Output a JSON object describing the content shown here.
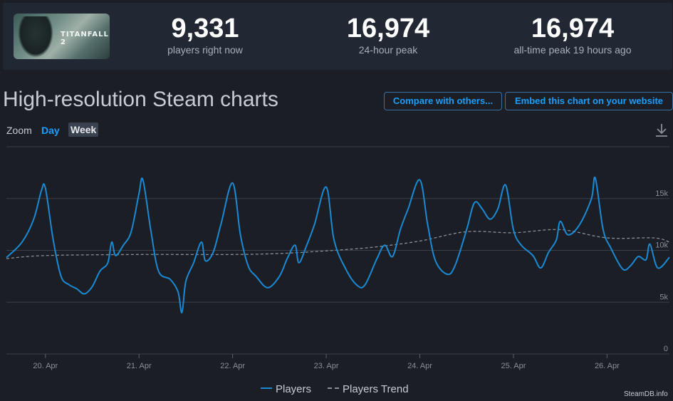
{
  "game": {
    "logo_text": "TITANFALL 2"
  },
  "stats": [
    {
      "value": "9,331",
      "label": "players right now"
    },
    {
      "value": "16,974",
      "label": "24-hour peak"
    },
    {
      "value": "16,974",
      "label": "all-time peak 19 hours ago"
    }
  ],
  "section": {
    "title": "High-resolution Steam charts",
    "compare_label": "Compare with others...",
    "embed_label": "Embed this chart on your website"
  },
  "zoom": {
    "label": "Zoom",
    "options": [
      "Day",
      "Week"
    ],
    "active": "Week"
  },
  "credit": "SteamDB.info",
  "colors": {
    "players": "#1a8ad4",
    "trend": "#8a8f96",
    "accent": "#1a9fff",
    "grid": "#3a3f48"
  },
  "chart_data": {
    "type": "line",
    "title": "",
    "xlabel": "",
    "ylabel": "",
    "x_range": [
      "2024-04-19 14:00",
      "2024-04-26 16:00"
    ],
    "ylim": [
      0,
      20000
    ],
    "y_ticks": [
      0,
      5000,
      10000,
      15000
    ],
    "y_tick_labels": [
      "0",
      "5k",
      "10k",
      "15k"
    ],
    "x_ticks": [
      "2024-04-20",
      "2024-04-21",
      "2024-04-22",
      "2024-04-23",
      "2024-04-24",
      "2024-04-25",
      "2024-04-26"
    ],
    "x_tick_labels": [
      "20. Apr",
      "21. Apr",
      "22. Apr",
      "23. Apr",
      "24. Apr",
      "25. Apr",
      "26. Apr"
    ],
    "grid": true,
    "legend_position": "bottom-center",
    "series": [
      {
        "name": "Players",
        "points": [
          [
            "2024-04-19 14:00",
            9300
          ],
          [
            "2024-04-19 18:00",
            10800
          ],
          [
            "2024-04-19 21:00",
            13000
          ],
          [
            "2024-04-19 23:00",
            15800
          ],
          [
            "2024-04-20 00:00",
            16000
          ],
          [
            "2024-04-20 02:00",
            11000
          ],
          [
            "2024-04-20 04:00",
            7500
          ],
          [
            "2024-04-20 06:00",
            6700
          ],
          [
            "2024-04-20 08:00",
            6300
          ],
          [
            "2024-04-20 10:00",
            5800
          ],
          [
            "2024-04-20 12:00",
            6500
          ],
          [
            "2024-04-20 14:00",
            8000
          ],
          [
            "2024-04-20 16:00",
            8800
          ],
          [
            "2024-04-20 17:00",
            10800
          ],
          [
            "2024-04-20 18:00",
            9500
          ],
          [
            "2024-04-20 20:00",
            10500
          ],
          [
            "2024-04-20 22:00",
            11800
          ],
          [
            "2024-04-21 00:00",
            15500
          ],
          [
            "2024-04-21 01:00",
            16800
          ],
          [
            "2024-04-21 03:00",
            12000
          ],
          [
            "2024-04-21 05:00",
            8000
          ],
          [
            "2024-04-21 08:00",
            7200
          ],
          [
            "2024-04-21 10:00",
            6000
          ],
          [
            "2024-04-21 11:00",
            4000
          ],
          [
            "2024-04-21 12:00",
            7000
          ],
          [
            "2024-04-21 14:00",
            8800
          ],
          [
            "2024-04-21 16:00",
            10800
          ],
          [
            "2024-04-21 17:00",
            9000
          ],
          [
            "2024-04-21 19:00",
            9800
          ],
          [
            "2024-04-21 21:00",
            12500
          ],
          [
            "2024-04-22 00:00",
            16500
          ],
          [
            "2024-04-22 02:00",
            11500
          ],
          [
            "2024-04-22 04:00",
            8500
          ],
          [
            "2024-04-22 06:00",
            7500
          ],
          [
            "2024-04-22 09:00",
            6400
          ],
          [
            "2024-04-22 12:00",
            7500
          ],
          [
            "2024-04-22 14:00",
            9200
          ],
          [
            "2024-04-22 16:00",
            10500
          ],
          [
            "2024-04-22 17:00",
            8800
          ],
          [
            "2024-04-22 19:00",
            10500
          ],
          [
            "2024-04-22 21:00",
            12500
          ],
          [
            "2024-04-23 00:00",
            16100
          ],
          [
            "2024-04-23 02:00",
            11000
          ],
          [
            "2024-04-23 05:00",
            8200
          ],
          [
            "2024-04-23 08:00",
            6600
          ],
          [
            "2024-04-23 10:00",
            6700
          ],
          [
            "2024-04-23 13:00",
            9200
          ],
          [
            "2024-04-23 15:00",
            10500
          ],
          [
            "2024-04-23 17:00",
            9400
          ],
          [
            "2024-04-23 19:00",
            12000
          ],
          [
            "2024-04-23 21:00",
            14000
          ],
          [
            "2024-04-24 00:00",
            16800
          ],
          [
            "2024-04-24 02:00",
            12500
          ],
          [
            "2024-04-24 04:00",
            9000
          ],
          [
            "2024-04-24 07:00",
            7700
          ],
          [
            "2024-04-24 09:00",
            8500
          ],
          [
            "2024-04-24 12:00",
            12000
          ],
          [
            "2024-04-24 14:00",
            14600
          ],
          [
            "2024-04-24 16:00",
            14000
          ],
          [
            "2024-04-24 18:00",
            13000
          ],
          [
            "2024-04-24 20:00",
            14000
          ],
          [
            "2024-04-24 22:00",
            16300
          ],
          [
            "2024-04-25 00:00",
            12000
          ],
          [
            "2024-04-25 02:00",
            10500
          ],
          [
            "2024-04-25 05:00",
            9500
          ],
          [
            "2024-04-25 07:00",
            8300
          ],
          [
            "2024-04-25 09:00",
            9800
          ],
          [
            "2024-04-25 11:00",
            11000
          ],
          [
            "2024-04-25 12:00",
            12800
          ],
          [
            "2024-04-25 14:00",
            11500
          ],
          [
            "2024-04-25 17:00",
            12500
          ],
          [
            "2024-04-25 20:00",
            15000
          ],
          [
            "2024-04-25 21:00",
            16974
          ],
          [
            "2024-04-25 23:00",
            12000
          ],
          [
            "2024-04-26 01:00",
            10200
          ],
          [
            "2024-04-26 04:00",
            8200
          ],
          [
            "2024-04-26 06:00",
            8500
          ],
          [
            "2024-04-26 08:00",
            9400
          ],
          [
            "2024-04-26 10:00",
            9100
          ],
          [
            "2024-04-26 11:00",
            10600
          ],
          [
            "2024-04-26 13:00",
            8300
          ],
          [
            "2024-04-26 16:00",
            9331
          ]
        ]
      },
      {
        "name": "Players Trend",
        "points": [
          [
            "2024-04-19 14:00",
            9200
          ],
          [
            "2024-04-20 00:00",
            9500
          ],
          [
            "2024-04-21 00:00",
            9600
          ],
          [
            "2024-04-22 00:00",
            9600
          ],
          [
            "2024-04-22 12:00",
            9700
          ],
          [
            "2024-04-23 00:00",
            9950
          ],
          [
            "2024-04-23 12:00",
            10300
          ],
          [
            "2024-04-24 00:00",
            10900
          ],
          [
            "2024-04-24 12:00",
            11800
          ],
          [
            "2024-04-25 00:00",
            11700
          ],
          [
            "2024-04-25 12:00",
            12000
          ],
          [
            "2024-04-26 00:00",
            11200
          ],
          [
            "2024-04-26 12:00",
            11200
          ],
          [
            "2024-04-26 16:00",
            10800
          ]
        ]
      }
    ]
  }
}
